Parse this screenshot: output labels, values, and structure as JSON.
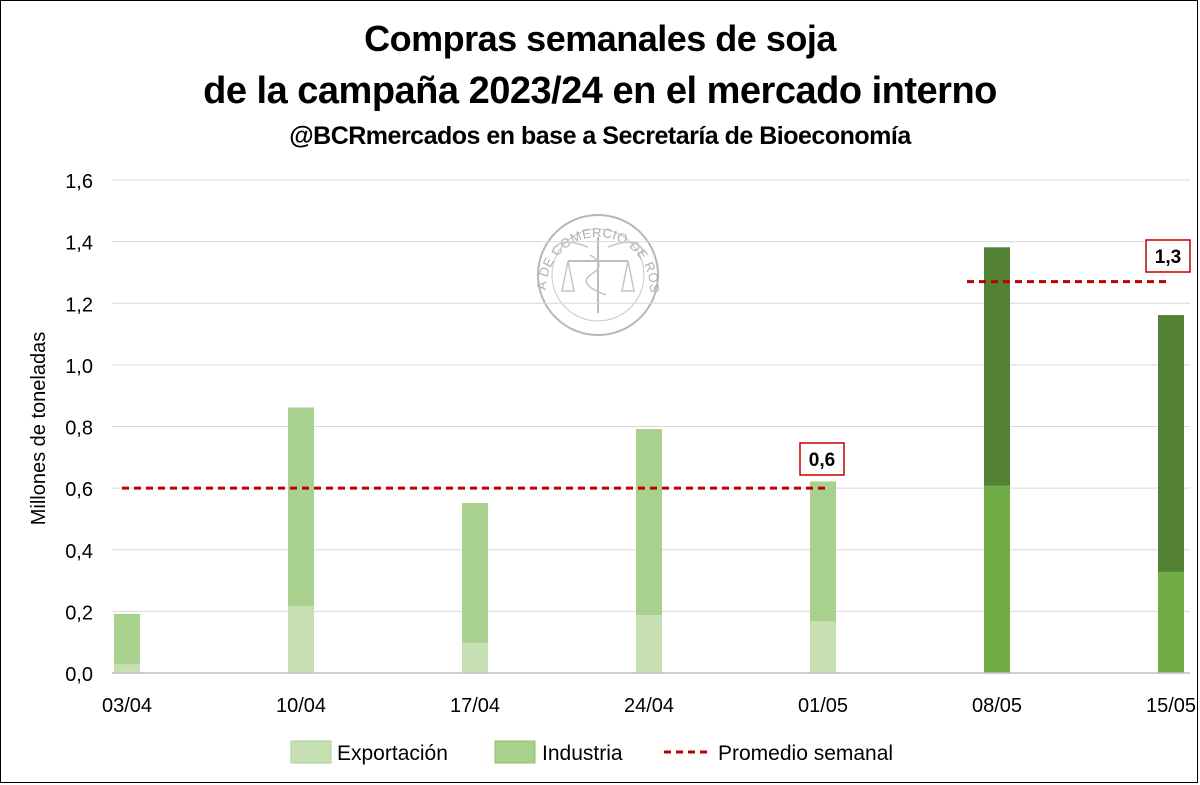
{
  "chart_data": {
    "type": "bar",
    "stacked": true,
    "title": "Compras semanales de soja",
    "title_line2": "de la campaña 2023/24 en el mercado interno",
    "subtitle": "@BCRmercados en base a Secretaría de Bioeconomía",
    "xlabel": "",
    "ylabel": "Millones de toneladas",
    "ylim": [
      0,
      1.6
    ],
    "yticks": [
      "0,0",
      "0,2",
      "0,4",
      "0,6",
      "0,8",
      "1,0",
      "1,2",
      "1,4",
      "1,6"
    ],
    "grid": true,
    "legend_position": "bottom",
    "categories": [
      "03/04",
      "10/04",
      "17/04",
      "24/04",
      "01/05",
      "08/05",
      "15/05"
    ],
    "series": [
      {
        "name": "Exportación",
        "values": [
          0.03,
          0.22,
          0.1,
          0.19,
          0.17,
          0.61,
          0.33
        ],
        "colors": [
          "#c6e0b4",
          "#c6e0b4",
          "#c6e0b4",
          "#c6e0b4",
          "#c6e0b4",
          "#70ad47",
          "#70ad47"
        ]
      },
      {
        "name": "Industria",
        "values": [
          0.16,
          0.64,
          0.45,
          0.6,
          0.45,
          0.77,
          0.83
        ],
        "colors": [
          "#a9d18e",
          "#a9d18e",
          "#a9d18e",
          "#a9d18e",
          "#a9d18e",
          "#548235",
          "#548235"
        ]
      }
    ],
    "averages": [
      {
        "label": "0,6",
        "value": 0.6,
        "from": "03/04",
        "to": "01/05"
      },
      {
        "label": "1,3",
        "value": 1.27,
        "from": "08/05",
        "to": "15/05"
      }
    ],
    "average_series_name": "Promedio semanal",
    "average_color": "#c00000",
    "watermark_text": "BOLSA DE COMERCIO DE ROSARIO"
  }
}
